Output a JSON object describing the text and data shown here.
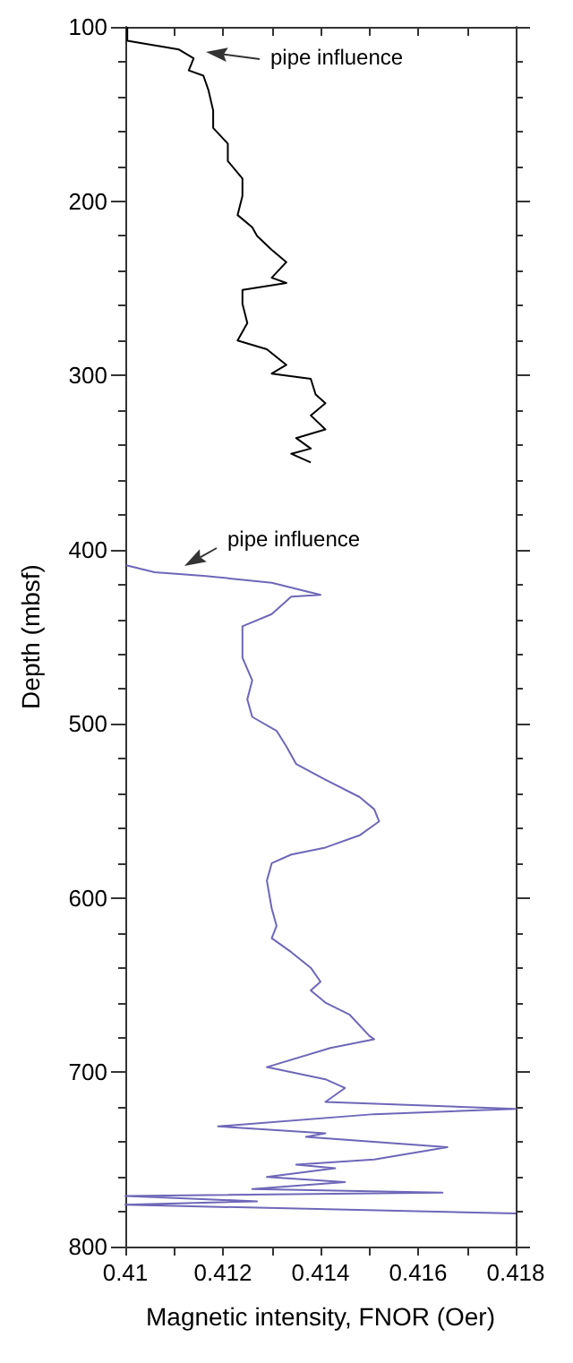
{
  "chart_data": {
    "type": "line",
    "xlabel": "Magnetic intensity, FNOR (Oer)",
    "ylabel": "Depth (mbsf)",
    "xlim": [
      0.41,
      0.418
    ],
    "xticks": [
      0.41,
      0.412,
      0.414,
      0.416,
      0.418
    ],
    "ylim": [
      800,
      100
    ],
    "yticks": [
      100,
      200,
      300,
      400,
      500,
      600,
      700,
      800
    ],
    "grid": false,
    "marker": "none",
    "line_style": "solid",
    "annotations": [
      "pipe influence",
      "pipe influence"
    ],
    "series": [
      {
        "color": "#000000",
        "x": [
          0.41004,
          0.41004,
          0.4111,
          0.4114,
          0.4113,
          0.4116,
          0.4117,
          0.4118,
          0.4118,
          0.4121,
          0.4121,
          0.4124,
          0.4124,
          0.4123,
          0.4126,
          0.4127,
          0.413,
          0.4133,
          0.413,
          0.4133,
          0.4124,
          0.4124,
          0.4125,
          0.4123,
          0.4129,
          0.4133,
          0.413,
          0.4138,
          0.4139,
          0.4141,
          0.4138,
          0.4141,
          0.4135,
          0.4138,
          0.4134,
          0.4138
        ],
        "values": [
          100,
          108,
          113,
          118,
          125,
          128,
          136,
          148,
          158,
          167,
          177,
          187,
          197,
          208,
          215,
          220,
          228,
          235,
          244,
          247,
          251,
          259,
          270,
          280,
          285,
          294,
          299,
          302,
          311,
          316,
          323,
          331,
          336,
          342,
          345,
          350
        ]
      },
      {
        "color": "#6e67b8",
        "x": [
          0.41002,
          0.4106,
          0.4116,
          0.413,
          0.414,
          0.4134,
          0.413,
          0.4124,
          0.4124,
          0.4126,
          0.4125,
          0.4126,
          0.4131,
          0.4133,
          0.4135,
          0.4141,
          0.4148,
          0.4151,
          0.4152,
          0.4148,
          0.4141,
          0.4134,
          0.413,
          0.4129,
          0.413,
          0.4131,
          0.413,
          0.4134,
          0.4138,
          0.414,
          0.4138,
          0.4141,
          0.4146,
          0.415,
          0.4151,
          0.4142,
          0.4129,
          0.4141,
          0.4145,
          0.4141,
          0.418,
          0.4151,
          0.4119,
          0.4141,
          0.4137,
          0.4166,
          0.4151,
          0.4135,
          0.4143,
          0.4129,
          0.4145,
          0.4126,
          0.4165,
          0.41,
          0.4127,
          0.41,
          0.418
        ],
        "values": [
          409,
          413,
          415,
          419,
          426,
          427,
          437,
          444,
          462,
          475,
          486,
          496,
          504,
          513,
          523,
          532,
          542,
          549,
          556,
          564,
          571,
          575,
          580,
          590,
          606,
          616,
          623,
          631,
          640,
          648,
          653,
          660,
          667,
          679,
          681,
          686,
          697,
          704,
          709,
          717,
          721,
          724,
          731,
          735,
          737,
          743,
          750,
          753,
          755,
          760,
          763,
          767,
          769,
          771,
          774,
          776,
          781
        ]
      }
    ]
  }
}
